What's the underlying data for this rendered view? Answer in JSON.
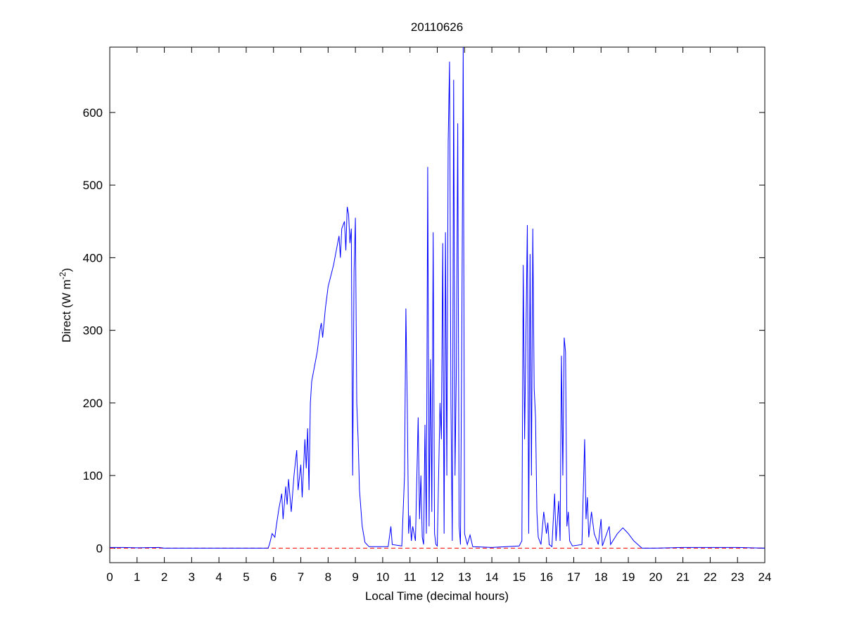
{
  "chart_data": {
    "type": "line",
    "title": "20110626",
    "xlabel": "Local Time (decimal hours)",
    "ylabel_parts": [
      "Direct (W m",
      "-2",
      ")"
    ],
    "xlim": [
      0,
      24
    ],
    "xticks": [
      0,
      1,
      2,
      3,
      4,
      5,
      6,
      7,
      8,
      9,
      10,
      11,
      12,
      13,
      14,
      15,
      16,
      17,
      18,
      19,
      20,
      21,
      22,
      23,
      24
    ],
    "ylim": [
      -20,
      690
    ],
    "yticks": [
      0,
      100,
      200,
      300,
      400,
      500,
      600
    ],
    "grid": false,
    "reference_line": {
      "y": 0,
      "color": "#ff0000",
      "dashed": true
    },
    "x": [
      0,
      0.5,
      1,
      1.8,
      2,
      5.8,
      5.85,
      5.95,
      6.05,
      6.1,
      6.2,
      6.3,
      6.35,
      6.45,
      6.5,
      6.55,
      6.65,
      6.75,
      6.85,
      6.9,
      7.0,
      7.05,
      7.15,
      7.2,
      7.25,
      7.3,
      7.35,
      7.4,
      7.5,
      7.6,
      7.7,
      7.75,
      7.8,
      7.9,
      8.0,
      8.1,
      8.2,
      8.3,
      8.4,
      8.45,
      8.5,
      8.6,
      8.65,
      8.7,
      8.75,
      8.8,
      8.85,
      8.9,
      8.95,
      9.0,
      9.05,
      9.1,
      9.15,
      9.25,
      9.35,
      9.5,
      10.2,
      10.3,
      10.35,
      10.7,
      10.8,
      10.85,
      10.9,
      10.95,
      11.0,
      11.05,
      11.1,
      11.2,
      11.3,
      11.35,
      11.4,
      11.45,
      11.5,
      11.55,
      11.6,
      11.65,
      11.7,
      11.75,
      11.8,
      11.85,
      11.9,
      11.95,
      12.0,
      12.1,
      12.15,
      12.2,
      12.25,
      12.3,
      12.35,
      12.4,
      12.45,
      12.5,
      12.55,
      12.6,
      12.65,
      12.7,
      12.75,
      12.8,
      12.85,
      12.9,
      12.95,
      13.0,
      13.1,
      13.2,
      13.3,
      14.0,
      15.0,
      15.1,
      15.15,
      15.2,
      15.3,
      15.35,
      15.4,
      15.45,
      15.5,
      15.55,
      15.6,
      15.65,
      15.7,
      15.8,
      15.9,
      16.0,
      16.05,
      16.1,
      16.2,
      16.3,
      16.35,
      16.45,
      16.5,
      16.55,
      16.6,
      16.65,
      16.7,
      16.75,
      16.8,
      16.85,
      16.95,
      17.3,
      17.4,
      17.45,
      17.5,
      17.55,
      17.65,
      17.75,
      17.9,
      18.0,
      18.05,
      18.3,
      18.35,
      18.6,
      18.8,
      19.0,
      19.2,
      19.5,
      20,
      21,
      22,
      23,
      24
    ],
    "series": [
      {
        "color": "#0000ff",
        "values": [
          1,
          1,
          0.5,
          1,
          0,
          0,
          5,
          20,
          15,
          30,
          55,
          75,
          40,
          85,
          60,
          95,
          50,
          100,
          135,
          80,
          115,
          70,
          150,
          110,
          165,
          80,
          200,
          230,
          250,
          270,
          300,
          310,
          290,
          330,
          360,
          375,
          390,
          410,
          430,
          400,
          440,
          450,
          410,
          470,
          460,
          420,
          440,
          100,
          380,
          455,
          200,
          150,
          80,
          30,
          8,
          2,
          2,
          30,
          5,
          3,
          100,
          330,
          200,
          20,
          45,
          10,
          30,
          10,
          180,
          40,
          100,
          15,
          5,
          170,
          20,
          525,
          30,
          260,
          50,
          435,
          20,
          5,
          3,
          200,
          150,
          420,
          20,
          435,
          100,
          560,
          670,
          200,
          10,
          645,
          100,
          250,
          585,
          30,
          5,
          300,
          690,
          20,
          5,
          18,
          2,
          1,
          3,
          10,
          390,
          150,
          445,
          20,
          405,
          100,
          440,
          220,
          180,
          50,
          15,
          5,
          50,
          20,
          35,
          5,
          2,
          75,
          10,
          65,
          10,
          265,
          100,
          290,
          270,
          30,
          50,
          10,
          3,
          5,
          150,
          40,
          70,
          15,
          50,
          20,
          5,
          40,
          3,
          30,
          5,
          20,
          28,
          20,
          10,
          0,
          0,
          1,
          1,
          1,
          0
        ]
      }
    ]
  }
}
